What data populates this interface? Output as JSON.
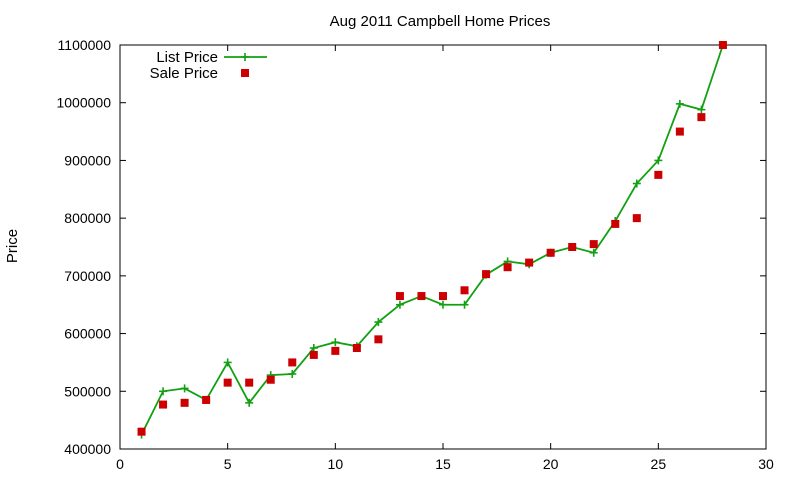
{
  "chart_data": {
    "type": "line",
    "title": "Aug 2011 Campbell Home Prices",
    "xlabel": "",
    "ylabel": "Price",
    "xlim": [
      0,
      30
    ],
    "ylim": [
      400000,
      1100000
    ],
    "xticks": [
      0,
      5,
      10,
      15,
      20,
      25,
      30
    ],
    "yticks": [
      400000,
      500000,
      600000,
      700000,
      800000,
      900000,
      1000000,
      1100000
    ],
    "grid": false,
    "legend_position": "top-left",
    "series": [
      {
        "name": "List Price",
        "style": "line-with-plus-markers",
        "color": "#12a012",
        "x": [
          1,
          2,
          3,
          4,
          5,
          6,
          7,
          8,
          9,
          10,
          11,
          12,
          13,
          14,
          15,
          16,
          17,
          18,
          19,
          20,
          21,
          22,
          23,
          24,
          25,
          26,
          27,
          28
        ],
        "values": [
          425000,
          500000,
          505000,
          485000,
          550000,
          480000,
          528000,
          530000,
          575000,
          585000,
          578000,
          620000,
          650000,
          665000,
          650000,
          650000,
          702000,
          725000,
          720000,
          740000,
          750000,
          740000,
          795000,
          860000,
          900000,
          998000,
          988000,
          1100000
        ]
      },
      {
        "name": "Sale Price",
        "style": "square-markers",
        "color": "#cc0000",
        "x": [
          1,
          2,
          3,
          4,
          5,
          6,
          7,
          8,
          9,
          10,
          11,
          12,
          13,
          14,
          15,
          16,
          17,
          18,
          19,
          20,
          21,
          22,
          23,
          24,
          25,
          26,
          27,
          28
        ],
        "values": [
          430000,
          477000,
          480000,
          485000,
          515000,
          515000,
          520000,
          550000,
          563000,
          570000,
          575000,
          590000,
          665000,
          665000,
          665000,
          675000,
          703000,
          715000,
          723000,
          740000,
          750000,
          755000,
          790000,
          800000,
          875000,
          950000,
          975000,
          1100000
        ]
      }
    ]
  }
}
